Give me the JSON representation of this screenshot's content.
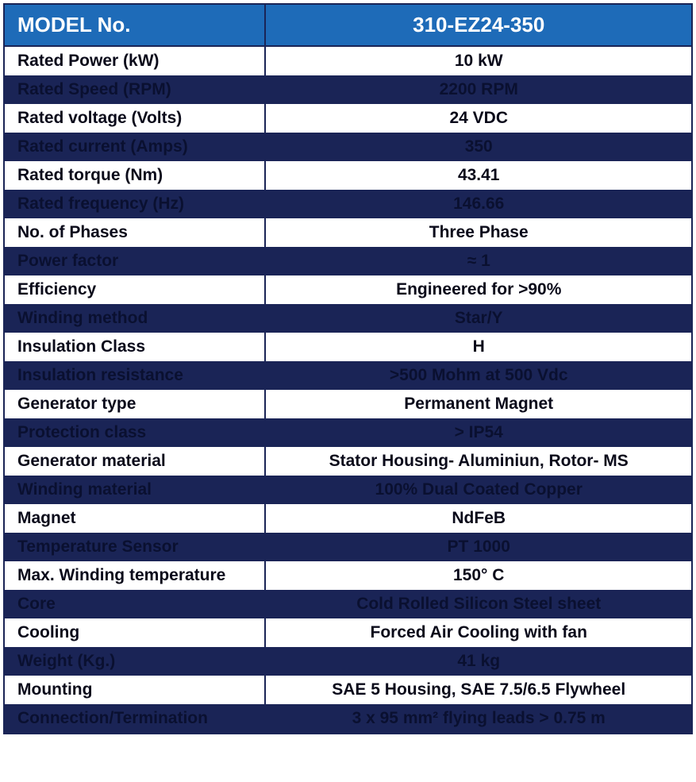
{
  "header": {
    "label": "MODEL No.",
    "value": "310-EZ24-350"
  },
  "styling": {
    "header_bg": "#1e6bb8",
    "header_fg": "#ffffff",
    "row_white_bg": "#ffffff",
    "row_white_fg": "#0a0a1a",
    "row_dark_bg": "#1a2456",
    "row_dark_fg": "#0a1030",
    "border_color": "#1a2456",
    "header_fontsize": 26,
    "cell_fontsize": 21
  },
  "rows": [
    {
      "label": "Rated Power (kW)",
      "value": "10 kW",
      "band": "white"
    },
    {
      "label": "Rated Speed (RPM)",
      "value": "2200 RPM",
      "band": "dark"
    },
    {
      "label": "Rated voltage (Volts)",
      "value": "24 VDC",
      "band": "white"
    },
    {
      "label": "Rated current (Amps)",
      "value": "350",
      "band": "dark"
    },
    {
      "label": "Rated torque (Nm)",
      "value": "43.41",
      "band": "white"
    },
    {
      "label": "Rated frequency (Hz)",
      "value": "146.66",
      "band": "dark"
    },
    {
      "label": "No. of Phases",
      "value": "Three Phase",
      "band": "white"
    },
    {
      "label": "Power factor",
      "value": "≈ 1",
      "band": "dark"
    },
    {
      "label": "Efficiency",
      "value": "Engineered for >90%",
      "band": "white"
    },
    {
      "label": "Winding method",
      "value": "Star/Y",
      "band": "dark"
    },
    {
      "label": "Insulation Class",
      "value": "H",
      "band": "white"
    },
    {
      "label": "Insulation resistance",
      "value": ">500 Mohm at 500 Vdc",
      "band": "dark"
    },
    {
      "label": "Generator type",
      "value": "Permanent Magnet",
      "band": "white"
    },
    {
      "label": "Protection class",
      "value": "> IP54",
      "band": "dark"
    },
    {
      "label": "Generator material",
      "value": "Stator Housing- Aluminiun, Rotor- MS",
      "band": "white"
    },
    {
      "label": "Winding material",
      "value": "100% Dual Coated Copper",
      "band": "dark"
    },
    {
      "label": "Magnet",
      "value": "NdFeB",
      "band": "white"
    },
    {
      "label": "Temperature Sensor",
      "value": "PT 1000",
      "band": "dark"
    },
    {
      "label": "Max. Winding temperature",
      "value": "150° C",
      "band": "white"
    },
    {
      "label": "Core",
      "value": "Cold Rolled Silicon Steel sheet",
      "band": "dark"
    },
    {
      "label": "Cooling",
      "value": "Forced Air Cooling with fan",
      "band": "white"
    },
    {
      "label": "Weight (Kg.)",
      "value": "41 kg",
      "band": "dark"
    },
    {
      "label": "Mounting",
      "value": "SAE 5 Housing, SAE 7.5/6.5 Flywheel",
      "band": "white"
    },
    {
      "label": "Connection/Termination",
      "value": "3 x 95 mm² flying leads > 0.75 m",
      "band": "dark"
    }
  ]
}
